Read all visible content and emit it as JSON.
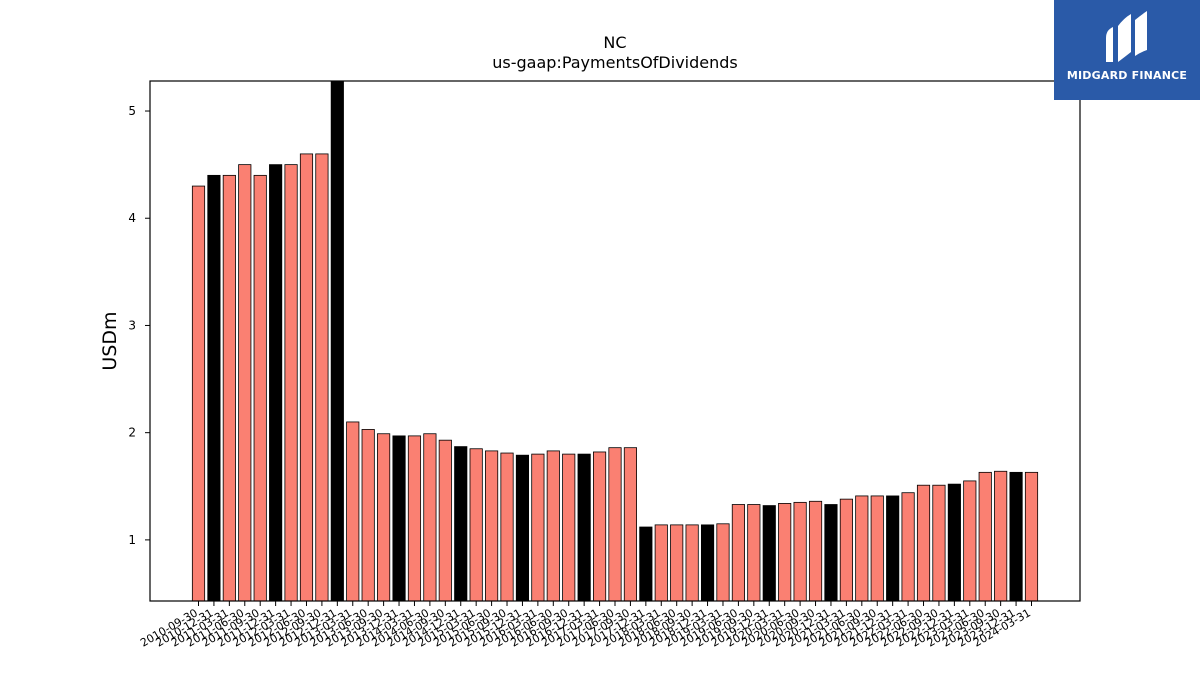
{
  "chart_data": {
    "type": "bar",
    "title": "NC",
    "subtitle": "us-gaap:PaymentsOfDividends",
    "ylabel": "USDm",
    "xlabel": "",
    "ylim": [
      0.43,
      5.28
    ],
    "yticks": [
      1,
      2,
      3,
      4,
      5
    ],
    "grid": false,
    "colors": {
      "default": "#fa8072",
      "highlight": "#000000",
      "edge": "#000000"
    },
    "categories": [
      "2010-09-30",
      "2010-12-31",
      "2011-03-31",
      "2011-06-30",
      "2011-09-30",
      "2011-12-31",
      "2012-03-31",
      "2012-06-30",
      "2012-09-30",
      "2012-12-31",
      "2013-03-31",
      "2013-06-30",
      "2013-09-30",
      "2013-12-31",
      "2014-03-31",
      "2014-06-30",
      "2014-09-30",
      "2014-12-31",
      "2015-03-31",
      "2015-06-30",
      "2015-09-30",
      "2015-12-31",
      "2016-03-31",
      "2016-06-30",
      "2016-09-30",
      "2016-12-31",
      "2017-03-31",
      "2017-06-30",
      "2017-09-30",
      "2017-12-31",
      "2018-03-31",
      "2018-06-30",
      "2018-09-30",
      "2018-12-31",
      "2019-03-31",
      "2019-06-30",
      "2019-09-30",
      "2019-12-31",
      "2020-03-31",
      "2020-06-30",
      "2020-09-30",
      "2020-12-31",
      "2021-03-31",
      "2021-06-30",
      "2021-09-30",
      "2021-12-31",
      "2022-03-31",
      "2022-06-30",
      "2022-09-30",
      "2022-12-31",
      "2023-03-31",
      "2023-06-30",
      "2023-09-30",
      "2023-12-31",
      "2024-03-31"
    ],
    "values": [
      4.3,
      4.4,
      4.4,
      4.5,
      4.4,
      4.5,
      4.5,
      4.6,
      4.6,
      5.3,
      2.1,
      2.03,
      1.99,
      1.97,
      1.97,
      1.99,
      1.93,
      1.87,
      1.85,
      1.83,
      1.81,
      1.79,
      1.8,
      1.83,
      1.8,
      1.8,
      1.82,
      1.86,
      1.86,
      1.12,
      1.14,
      1.14,
      1.14,
      1.14,
      1.15,
      1.33,
      1.33,
      1.32,
      1.34,
      1.35,
      1.36,
      1.33,
      1.38,
      1.41,
      1.41,
      1.41,
      1.44,
      1.51,
      1.51,
      1.52,
      1.55,
      1.63,
      1.64,
      1.63,
      1.63
    ],
    "highlight_indices": [
      1,
      5,
      9,
      13,
      17,
      21,
      25,
      29,
      33,
      37,
      41,
      45,
      49,
      53
    ]
  },
  "logo": {
    "text": "MIDGARD FINANCE",
    "icon": "midgard-logo-icon"
  }
}
